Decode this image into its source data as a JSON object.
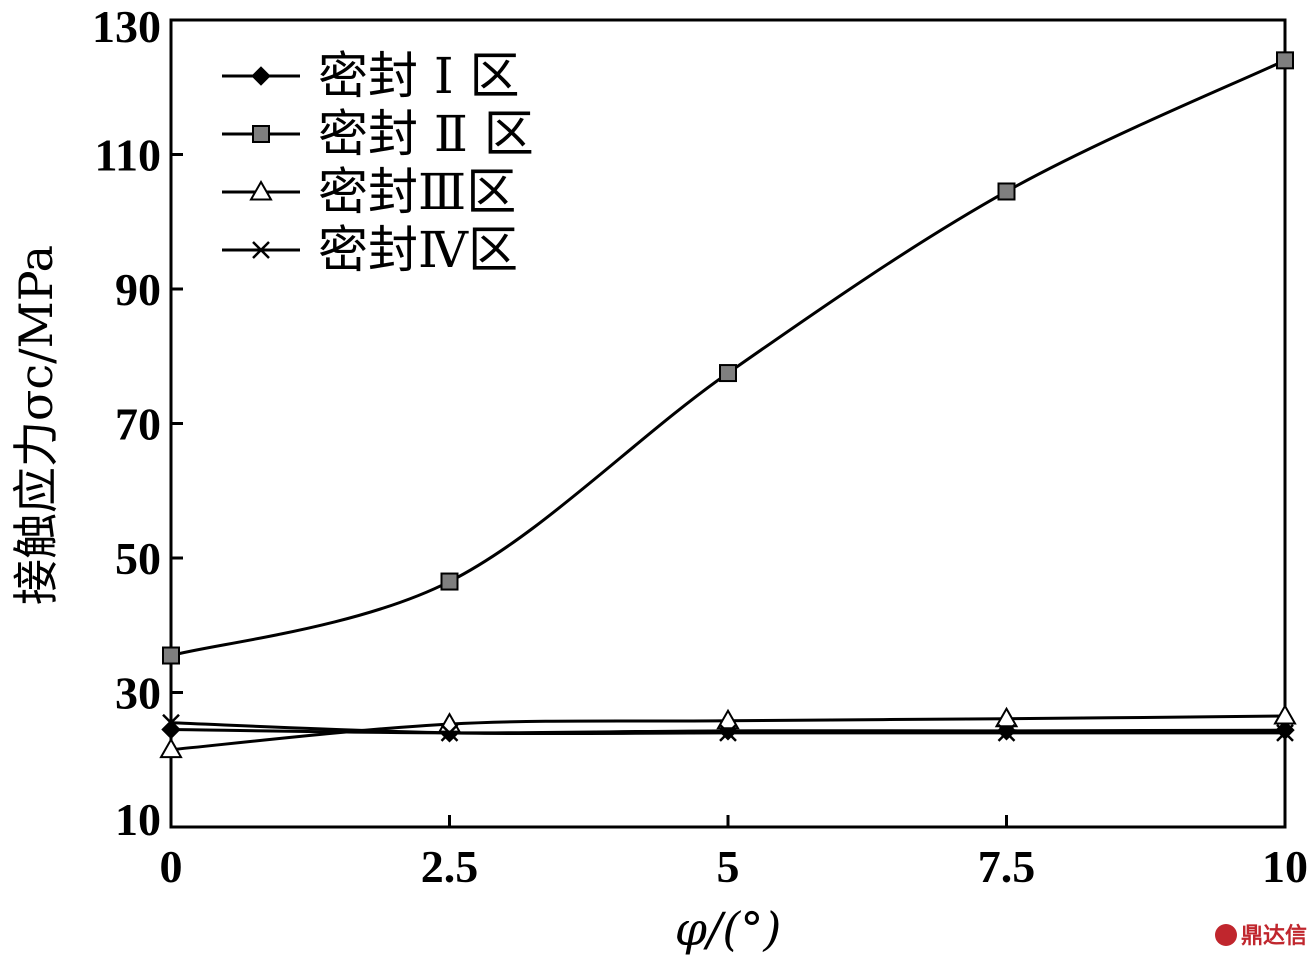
{
  "chart_data": {
    "type": "line",
    "xlabel": "φ/(°)",
    "ylabel": "接触应力σc/MPa",
    "xlim": [
      0,
      10
    ],
    "ylim": [
      10,
      130
    ],
    "x_ticks": [
      "0",
      "2.5",
      "5",
      "7.5",
      "10"
    ],
    "y_ticks": [
      "10",
      "30",
      "50",
      "70",
      "90",
      "110",
      "130"
    ],
    "x": [
      0,
      2.5,
      5,
      7.5,
      10
    ],
    "grid": false,
    "legend_position": "top-left",
    "series": [
      {
        "name": "密封 Ⅰ 区",
        "marker": "diamond",
        "values": [
          24.5,
          24.0,
          24.3,
          24.3,
          24.4
        ]
      },
      {
        "name": "密封 Ⅱ 区",
        "marker": "square",
        "values": [
          35.5,
          46.5,
          77.5,
          104.5,
          124.0
        ]
      },
      {
        "name": "密封Ⅲ区",
        "marker": "triangle",
        "values": [
          21.5,
          25.3,
          25.8,
          26.1,
          26.5
        ]
      },
      {
        "name": "密封Ⅳ区",
        "marker": "x",
        "values": [
          25.5,
          24.0,
          24.0,
          24.0,
          24.0
        ]
      }
    ]
  },
  "watermark": {
    "text": "鼎达信"
  }
}
